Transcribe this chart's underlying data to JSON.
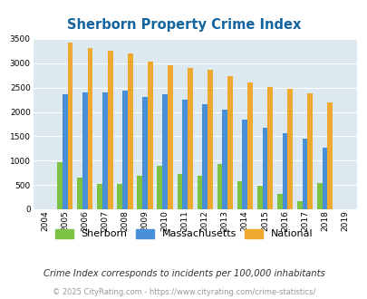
{
  "title": "Sherborn Property Crime Index",
  "years": [
    2004,
    2005,
    2006,
    2007,
    2008,
    2009,
    2010,
    2011,
    2012,
    2013,
    2014,
    2015,
    2016,
    2017,
    2018,
    2019
  ],
  "sherborn": [
    0,
    960,
    650,
    530,
    530,
    680,
    890,
    720,
    680,
    930,
    570,
    490,
    310,
    165,
    540,
    0
  ],
  "massachusetts": [
    0,
    2370,
    2400,
    2400,
    2430,
    2310,
    2360,
    2260,
    2160,
    2050,
    1850,
    1680,
    1560,
    1460,
    1270,
    0
  ],
  "national": [
    0,
    3420,
    3320,
    3260,
    3200,
    3030,
    2950,
    2900,
    2870,
    2730,
    2600,
    2510,
    2470,
    2380,
    2200,
    0
  ],
  "sherborn_color": "#7dc242",
  "massachusetts_color": "#4a90d9",
  "national_color": "#f0a830",
  "bg_color": "#dce9f0",
  "title_color": "#1464a0",
  "ylabel_max": 3500,
  "yticks": [
    0,
    500,
    1000,
    1500,
    2000,
    2500,
    3000,
    3500
  ],
  "footnote1": "Crime Index corresponds to incidents per 100,000 inhabitants",
  "footnote2": "© 2025 CityRating.com - https://www.cityrating.com/crime-statistics/",
  "legend_labels": [
    "Sherborn",
    "Massachusetts",
    "National"
  ]
}
